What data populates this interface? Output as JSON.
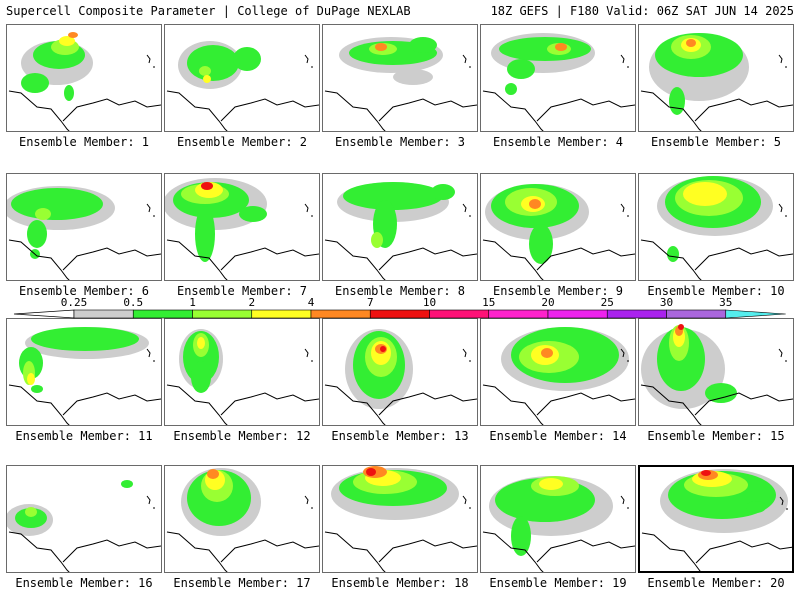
{
  "header": {
    "title": "Supercell Composite Parameter | College of DuPage NEXLAB",
    "run_info": "18Z GEFS | F180 Valid: 06Z SAT JUN 14 2025"
  },
  "legend": {
    "levels": [
      "0.25",
      "0.5",
      "1",
      "2",
      "4",
      "7",
      "10",
      "15",
      "20",
      "25",
      "30",
      "35"
    ],
    "colors": [
      "#cdcdcd",
      "#33ee33",
      "#99ff33",
      "#ffff22",
      "#ff8822",
      "#ee1111",
      "#ff1177",
      "#ff22cc",
      "#ee22ee",
      "#aa22ee",
      "#aa66dd",
      "#55eeee"
    ]
  },
  "panels": [
    {
      "label": "Ensemble Member: 1",
      "selected": false
    },
    {
      "label": "Ensemble Member: 2",
      "selected": false
    },
    {
      "label": "Ensemble Member: 3",
      "selected": false
    },
    {
      "label": "Ensemble Member: 4",
      "selected": false
    },
    {
      "label": "Ensemble Member: 5",
      "selected": false
    },
    {
      "label": "Ensemble Member: 6",
      "selected": false
    },
    {
      "label": "Ensemble Member: 7",
      "selected": false
    },
    {
      "label": "Ensemble Member: 8",
      "selected": false
    },
    {
      "label": "Ensemble Member: 9",
      "selected": false
    },
    {
      "label": "Ensemble Member: 10",
      "selected": false
    },
    {
      "label": "Ensemble Member: 11",
      "selected": false
    },
    {
      "label": "Ensemble Member: 12",
      "selected": false
    },
    {
      "label": "Ensemble Member: 13",
      "selected": false
    },
    {
      "label": "Ensemble Member: 14",
      "selected": false
    },
    {
      "label": "Ensemble Member: 15",
      "selected": false
    },
    {
      "label": "Ensemble Member: 16",
      "selected": false
    },
    {
      "label": "Ensemble Member: 17",
      "selected": false
    },
    {
      "label": "Ensemble Member: 18",
      "selected": false
    },
    {
      "label": "Ensemble Member: 19",
      "selected": false
    },
    {
      "label": "Ensemble Member: 20",
      "selected": true
    }
  ]
}
